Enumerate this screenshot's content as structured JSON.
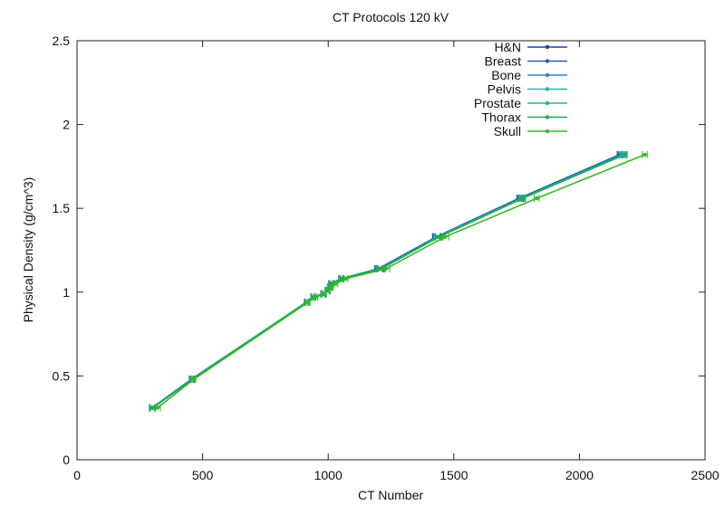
{
  "chart_data": {
    "type": "line",
    "title": "CT Protocols 120 kV",
    "xlabel": "CT Number",
    "ylabel": "Physical Density (g/cm^3)",
    "xlim": [
      0,
      2500
    ],
    "ylim": [
      0,
      2.5
    ],
    "xticks": [
      0,
      500,
      1000,
      1500,
      2000,
      2500
    ],
    "yticks": [
      0,
      0.5,
      1,
      1.5,
      2,
      2.5
    ],
    "xtick_labels": [
      "0",
      "500",
      "1000",
      "1500",
      "2000",
      "2500"
    ],
    "ytick_labels": [
      "0",
      "0.5",
      "1",
      "1.5",
      "2",
      "2.5"
    ],
    "grid": false,
    "legend_position": "top-right",
    "error_bars": "horizontal",
    "series": [
      {
        "name": "H&N",
        "color": "#1f3fa8",
        "x": [
          300,
          455,
          915,
          940,
          980,
          995,
          1005,
          1010,
          1050,
          1200,
          1430,
          1760,
          2160
        ],
        "y": [
          0.31,
          0.48,
          0.94,
          0.97,
          0.99,
          1.01,
          1.03,
          1.05,
          1.08,
          1.14,
          1.33,
          1.56,
          1.82
        ],
        "xerr": [
          10,
          8,
          8,
          8,
          8,
          8,
          8,
          8,
          8,
          15,
          15,
          10,
          10
        ]
      },
      {
        "name": "Breast",
        "color": "#2a5ab8",
        "x": [
          298,
          455,
          915,
          940,
          980,
          995,
          1005,
          1010,
          1050,
          1205,
          1432,
          1765,
          2165
        ],
        "y": [
          0.31,
          0.48,
          0.94,
          0.97,
          0.99,
          1.01,
          1.03,
          1.05,
          1.08,
          1.14,
          1.33,
          1.56,
          1.82
        ],
        "xerr": [
          10,
          8,
          8,
          8,
          8,
          8,
          8,
          8,
          8,
          15,
          15,
          10,
          10
        ]
      },
      {
        "name": "Bone",
        "color": "#2a86c4",
        "x": [
          300,
          458,
          912,
          938,
          978,
          995,
          1005,
          1012,
          1052,
          1208,
          1435,
          1768,
          2170
        ],
        "y": [
          0.31,
          0.48,
          0.94,
          0.97,
          0.99,
          1.01,
          1.03,
          1.05,
          1.08,
          1.14,
          1.33,
          1.56,
          1.82
        ],
        "xerr": [
          10,
          8,
          8,
          8,
          8,
          8,
          8,
          8,
          8,
          15,
          15,
          10,
          10
        ]
      },
      {
        "name": "Pelvis",
        "color": "#2ab0b0",
        "x": [
          300,
          458,
          915,
          940,
          980,
          995,
          1005,
          1012,
          1052,
          1210,
          1438,
          1770,
          2175
        ],
        "y": [
          0.31,
          0.48,
          0.94,
          0.97,
          0.99,
          1.01,
          1.03,
          1.05,
          1.08,
          1.14,
          1.33,
          1.56,
          1.82
        ],
        "xerr": [
          10,
          8,
          8,
          8,
          8,
          8,
          8,
          8,
          8,
          15,
          15,
          10,
          10
        ]
      },
      {
        "name": "Prostate",
        "color": "#1fb890",
        "x": [
          302,
          460,
          915,
          942,
          982,
          998,
          1008,
          1015,
          1055,
          1212,
          1440,
          1772,
          2178
        ],
        "y": [
          0.31,
          0.48,
          0.94,
          0.97,
          0.99,
          1.01,
          1.03,
          1.05,
          1.08,
          1.14,
          1.33,
          1.56,
          1.82
        ],
        "xerr": [
          10,
          8,
          8,
          8,
          8,
          8,
          8,
          8,
          8,
          15,
          15,
          10,
          10
        ]
      },
      {
        "name": "Thorax",
        "color": "#22aa55",
        "x": [
          302,
          460,
          915,
          942,
          982,
          998,
          1008,
          1015,
          1055,
          1212,
          1442,
          1775,
          2180
        ],
        "y": [
          0.31,
          0.48,
          0.94,
          0.97,
          0.99,
          1.01,
          1.03,
          1.05,
          1.08,
          1.14,
          1.33,
          1.56,
          1.82
        ],
        "xerr": [
          10,
          8,
          8,
          8,
          8,
          8,
          8,
          8,
          8,
          15,
          15,
          10,
          10
        ]
      },
      {
        "name": "Skull",
        "color": "#33bb22",
        "x": [
          320,
          465,
          920,
          950,
          985,
          1000,
          1012,
          1030,
          1070,
          1230,
          1465,
          1830,
          2260
        ],
        "y": [
          0.31,
          0.48,
          0.94,
          0.97,
          0.99,
          1.01,
          1.03,
          1.05,
          1.08,
          1.14,
          1.33,
          1.56,
          1.82
        ],
        "xerr": [
          12,
          8,
          8,
          8,
          8,
          8,
          8,
          8,
          8,
          15,
          15,
          10,
          10
        ]
      }
    ]
  }
}
